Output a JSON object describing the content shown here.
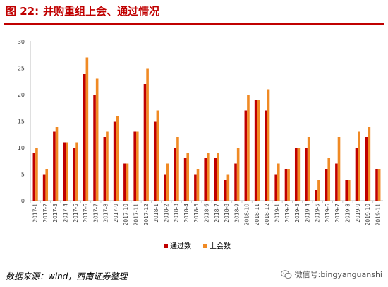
{
  "header": {
    "figure_label": "图 22:",
    "figure_title": "并购重组上会、通过情况"
  },
  "footer": {
    "source": "数据来源：wind，西南证券整理",
    "watermark": "微信号:bingyanguanshi"
  },
  "colors": {
    "title": "#c00000",
    "passed": "#c00000",
    "submitted": "#f08a24"
  },
  "chart_data": {
    "type": "bar",
    "ylim": [
      0,
      30
    ],
    "yticks": [
      0,
      5,
      10,
      15,
      20,
      25,
      30
    ],
    "legend_position": "bottom",
    "grid": false,
    "categories": [
      "2017-1",
      "2017-2",
      "2017-3",
      "2017-4",
      "2017-5",
      "2017-6",
      "2017-7",
      "2017-8",
      "2017-9",
      "2017-10",
      "2017-11",
      "2017-12",
      "2018-1",
      "2018-2",
      "2018-3",
      "2018-4",
      "2018-5",
      "2018-6",
      "2018-7",
      "2018-8",
      "2018-9",
      "2018-10",
      "2018-11",
      "2018-12",
      "2019-1",
      "2019-2",
      "2019-3",
      "2019-4",
      "2019-5",
      "2019-6",
      "2019-7",
      "2019-8",
      "2019-9",
      "2019-10",
      "2019-11"
    ],
    "series": [
      {
        "name": "通过数",
        "color": "#c00000",
        "values": [
          9,
          5,
          13,
          11,
          10,
          24,
          20,
          12,
          15,
          7,
          13,
          22,
          15,
          5,
          10,
          8,
          5,
          8,
          8,
          4,
          7,
          17,
          19,
          17,
          5,
          6,
          10,
          10,
          2,
          6,
          7,
          4,
          10,
          12,
          6
        ]
      },
      {
        "name": "上会数",
        "color": "#f08a24",
        "values": [
          10,
          6,
          14,
          11,
          11,
          27,
          23,
          13,
          16,
          7,
          13,
          25,
          17,
          7,
          12,
          9,
          6,
          9,
          9,
          5,
          10,
          20,
          19,
          21,
          7,
          6,
          10,
          12,
          4,
          8,
          12,
          4,
          13,
          14,
          6
        ]
      }
    ]
  }
}
